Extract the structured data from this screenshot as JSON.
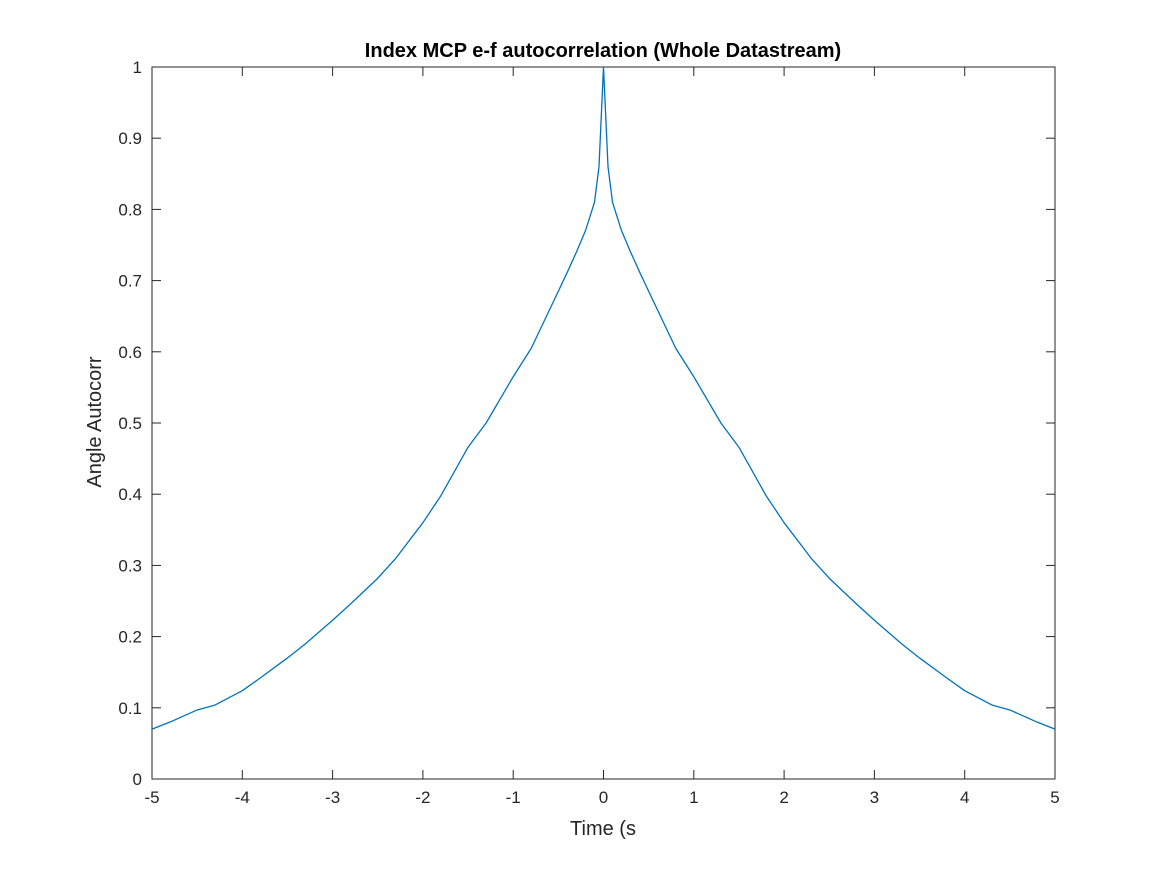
{
  "chart_data": {
    "type": "line",
    "title": "Index MCP e-f autocorrelation (Whole Datastream)",
    "xlabel": "Time (s",
    "ylabel": "Angle Autocorr",
    "xlim": [
      -5,
      5
    ],
    "ylim": [
      0,
      1
    ],
    "xticks": [
      "-5",
      "-4",
      "-3",
      "-2",
      "-1",
      "0",
      "1",
      "2",
      "3",
      "4",
      "5"
    ],
    "yticks": [
      "0",
      "0.1",
      "0.2",
      "0.3",
      "0.4",
      "0.5",
      "0.6",
      "0.7",
      "0.8",
      "0.9",
      "1"
    ],
    "grid": false,
    "legend": "none",
    "series": [
      {
        "color": "#0072bd",
        "x": [
          -5,
          -4.8,
          -4.5,
          -4.3,
          -4,
          -3.8,
          -3.5,
          -3.3,
          -3,
          -2.8,
          -2.5,
          -2.3,
          -2,
          -1.8,
          -1.5,
          -1.3,
          -1,
          -0.8,
          -0.5,
          -0.4,
          -0.3,
          -0.2,
          -0.1,
          -0.05,
          0,
          0.05,
          0.1,
          0.2,
          0.3,
          0.4,
          0.5,
          0.8,
          1,
          1.3,
          1.5,
          1.8,
          2,
          2.3,
          2.5,
          2.8,
          3,
          3.3,
          3.5,
          3.8,
          4,
          4.3,
          4.5,
          4.8,
          5
        ],
        "y": [
          0.07,
          0.08,
          0.097,
          0.104,
          0.124,
          0.142,
          0.17,
          0.19,
          0.223,
          0.246,
          0.282,
          0.31,
          0.36,
          0.398,
          0.466,
          0.5,
          0.565,
          0.605,
          0.685,
          0.712,
          0.74,
          0.77,
          0.81,
          0.86,
          1.0,
          0.86,
          0.81,
          0.77,
          0.74,
          0.712,
          0.685,
          0.605,
          0.565,
          0.5,
          0.466,
          0.398,
          0.36,
          0.31,
          0.282,
          0.246,
          0.223,
          0.19,
          0.17,
          0.142,
          0.124,
          0.104,
          0.097,
          0.08,
          0.07
        ]
      }
    ]
  }
}
